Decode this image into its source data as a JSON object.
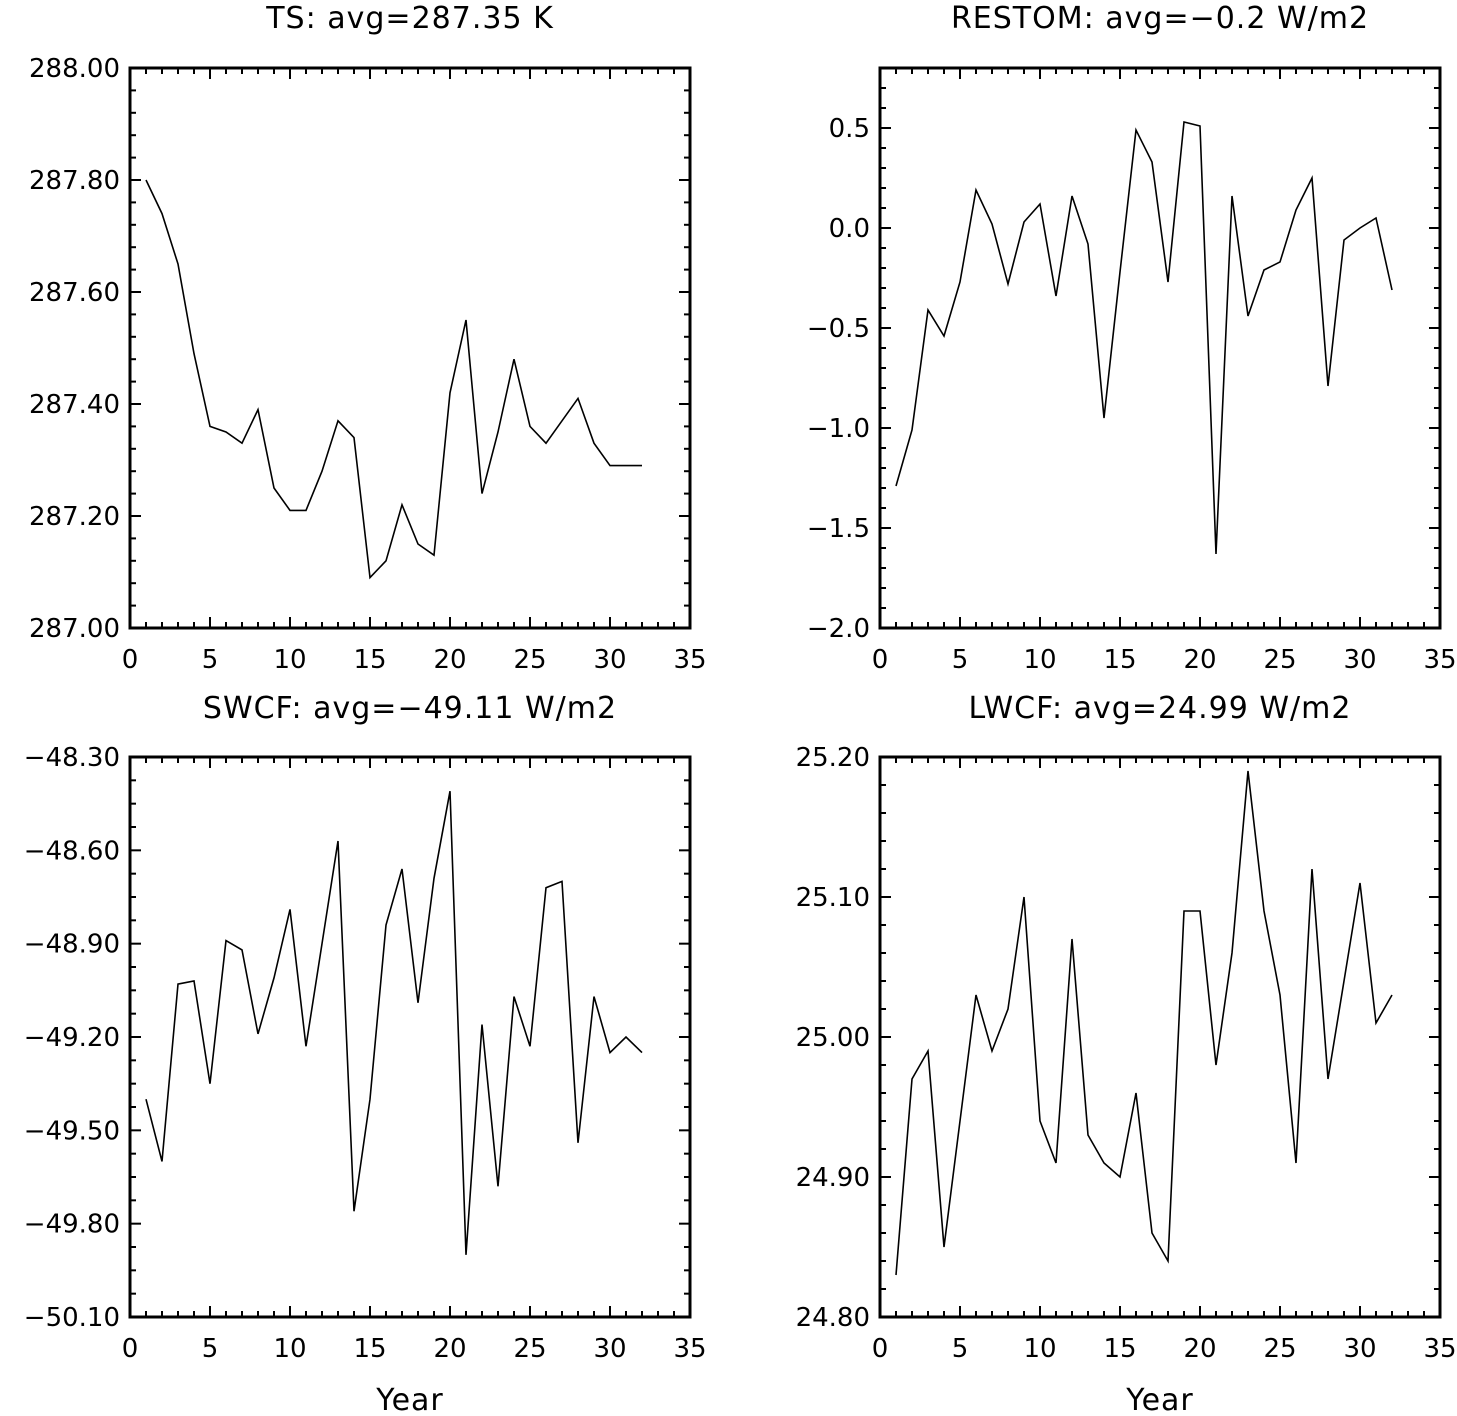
{
  "chart_data": [
    {
      "type": "line",
      "title": "TS: avg=287.35 K",
      "xlabel": "",
      "ylabel": "",
      "xlim": [
        0,
        35
      ],
      "ylim": [
        287.0,
        288.0
      ],
      "xticks": [
        "0",
        "5",
        "10",
        "15",
        "20",
        "25",
        "30",
        "35"
      ],
      "yticks": [
        "287.00",
        "287.20",
        "287.40",
        "287.60",
        "287.80",
        "288.00"
      ],
      "grid": false,
      "x": [
        1,
        2,
        3,
        4,
        5,
        6,
        7,
        8,
        9,
        10,
        11,
        12,
        13,
        14,
        15,
        16,
        17,
        18,
        19,
        20,
        21,
        22,
        23,
        24,
        25,
        26,
        27,
        28,
        29,
        30,
        31,
        32
      ],
      "series": [
        {
          "values": [
            287.8,
            287.74,
            287.65,
            287.49,
            287.36,
            287.35,
            287.33,
            287.39,
            287.25,
            287.21,
            287.21,
            287.28,
            287.37,
            287.34,
            287.09,
            287.12,
            287.22,
            287.15,
            287.13,
            287.42,
            287.55,
            287.24,
            287.35,
            287.48,
            287.36,
            287.33,
            287.37,
            287.41,
            287.33,
            287.29,
            287.29,
            287.29
          ]
        }
      ]
    },
    {
      "type": "line",
      "title": "RESTOM: avg=−0.2 W/m2",
      "xlabel": "",
      "ylabel": "",
      "xlim": [
        0,
        35
      ],
      "ylim": [
        -2.0,
        0.8
      ],
      "xticks": [
        "0",
        "5",
        "10",
        "15",
        "20",
        "25",
        "30",
        "35"
      ],
      "yticks": [
        "−2.0",
        "−1.5",
        "−1.0",
        "−0.5",
        "0.0",
        "0.5"
      ],
      "grid": false,
      "x": [
        1,
        2,
        3,
        4,
        5,
        6,
        7,
        8,
        9,
        10,
        11,
        12,
        13,
        14,
        15,
        16,
        17,
        18,
        19,
        20,
        21,
        22,
        23,
        24,
        25,
        26,
        27,
        28,
        29,
        30,
        31,
        32
      ],
      "series": [
        {
          "values": [
            -1.29,
            -1.01,
            -0.41,
            -0.54,
            -0.27,
            0.19,
            0.02,
            -0.28,
            0.03,
            0.12,
            -0.34,
            0.16,
            -0.08,
            -0.95,
            -0.22,
            0.49,
            0.33,
            -0.27,
            0.53,
            0.51,
            -1.63,
            0.16,
            -0.44,
            -0.21,
            -0.17,
            0.09,
            0.25,
            -0.79,
            -0.06,
            0.0,
            0.05,
            -0.31
          ]
        }
      ]
    },
    {
      "type": "line",
      "title": "SWCF: avg=−49.11 W/m2",
      "xlabel": "Year",
      "ylabel": "",
      "xlim": [
        0,
        35
      ],
      "ylim": [
        -50.1,
        -48.3
      ],
      "xticks": [
        "0",
        "5",
        "10",
        "15",
        "20",
        "25",
        "30",
        "35"
      ],
      "yticks": [
        "−50.10",
        "−49.80",
        "−49.50",
        "−49.20",
        "−48.90",
        "−48.60",
        "−48.30"
      ],
      "grid": false,
      "x": [
        1,
        2,
        3,
        4,
        5,
        6,
        7,
        8,
        9,
        10,
        11,
        12,
        13,
        14,
        15,
        16,
        17,
        18,
        19,
        20,
        21,
        22,
        23,
        24,
        25,
        26,
        27,
        28,
        29,
        30,
        31,
        32
      ],
      "series": [
        {
          "values": [
            -49.4,
            -49.6,
            -49.03,
            -49.02,
            -49.35,
            -48.89,
            -48.92,
            -49.19,
            -49.01,
            -48.79,
            -49.23,
            -48.9,
            -48.57,
            -49.76,
            -49.4,
            -48.84,
            -48.66,
            -49.09,
            -48.69,
            -48.41,
            -49.9,
            -49.16,
            -49.68,
            -49.07,
            -49.23,
            -48.72,
            -48.7,
            -49.54,
            -49.07,
            -49.25,
            -49.2,
            -49.25
          ]
        }
      ]
    },
    {
      "type": "line",
      "title": "LWCF: avg=24.99 W/m2",
      "xlabel": "Year",
      "ylabel": "",
      "xlim": [
        0,
        35
      ],
      "ylim": [
        24.8,
        25.2
      ],
      "xticks": [
        "0",
        "5",
        "10",
        "15",
        "20",
        "25",
        "30",
        "35"
      ],
      "yticks": [
        "24.80",
        "24.90",
        "25.00",
        "25.10",
        "25.20"
      ],
      "grid": false,
      "x": [
        1,
        2,
        3,
        4,
        5,
        6,
        7,
        8,
        9,
        10,
        11,
        12,
        13,
        14,
        15,
        16,
        17,
        18,
        19,
        20,
        21,
        22,
        23,
        24,
        25,
        26,
        27,
        28,
        29,
        30,
        31,
        32
      ],
      "series": [
        {
          "values": [
            24.83,
            24.97,
            24.99,
            24.85,
            24.94,
            25.03,
            24.99,
            25.02,
            25.1,
            24.94,
            24.91,
            25.07,
            24.93,
            24.91,
            24.9,
            24.96,
            24.86,
            24.84,
            25.09,
            25.09,
            24.98,
            25.06,
            25.19,
            25.09,
            25.03,
            24.91,
            25.12,
            24.97,
            25.04,
            25.11,
            25.01,
            25.03
          ]
        }
      ]
    }
  ]
}
